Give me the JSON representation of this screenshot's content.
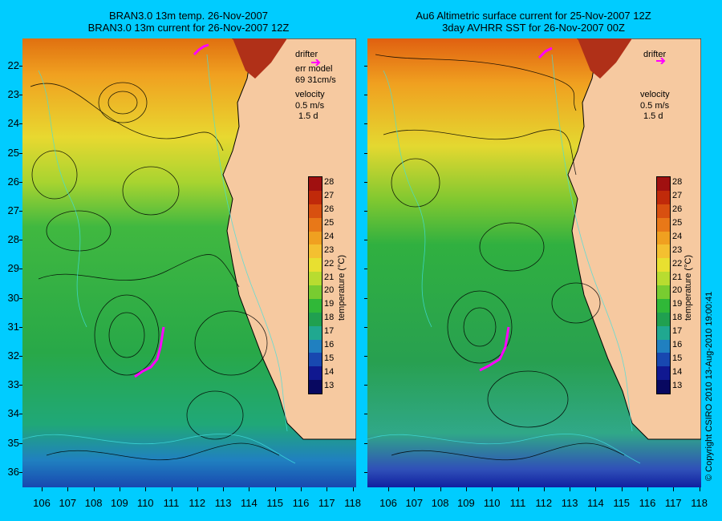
{
  "left_panel": {
    "title_line1": "BRAN3.0 13m temp. 26-Nov-2007",
    "title_line2": "BRAN3.0 13m current for 26-Nov-2007 12Z",
    "legend": {
      "drifter": "drifter",
      "err_model": "err model",
      "err_value": "69 31cm/s",
      "velocity": "velocity",
      "velocity_scale": "0.5 m/s",
      "duration": "1.5 d"
    }
  },
  "right_panel": {
    "title_line1": "Au6 Altimetric surface current for 25-Nov-2007 12Z",
    "title_line2": "3day AVHRR SST for 26-Nov-2007 00Z",
    "legend": {
      "drifter": "drifter",
      "velocity": "velocity",
      "velocity_scale": "0.5 m/s",
      "duration": "1.5 d"
    }
  },
  "colorbar": {
    "title": "temperature (°C)",
    "ticks": [
      "28",
      "27",
      "26",
      "25",
      "24",
      "23",
      "22",
      "21",
      "20",
      "19",
      "18",
      "17",
      "16",
      "15",
      "14",
      "13"
    ],
    "colors": [
      "#a01010",
      "#c02a0a",
      "#d85010",
      "#e87818",
      "#f0a020",
      "#f4c030",
      "#e8e030",
      "#b8dc30",
      "#78cc30",
      "#30b838",
      "#20a050",
      "#20a890",
      "#2080c0",
      "#1848b0",
      "#101890",
      "#080860"
    ]
  },
  "axes": {
    "lat_labels": [
      "22",
      "23",
      "24",
      "25",
      "26",
      "27",
      "28",
      "29",
      "30",
      "31",
      "32",
      "33",
      "34",
      "35",
      "36"
    ],
    "lon_labels": [
      "106",
      "107",
      "108",
      "109",
      "110",
      "111",
      "112",
      "113",
      "114",
      "115",
      "116",
      "117",
      "118"
    ]
  },
  "copyright": "© Copyright CSIRO 2010   13-Aug-2010 19:00:41",
  "colors": {
    "background": "#00ccff",
    "land": "#f6c9a0",
    "drifter": "#ff00ff"
  }
}
